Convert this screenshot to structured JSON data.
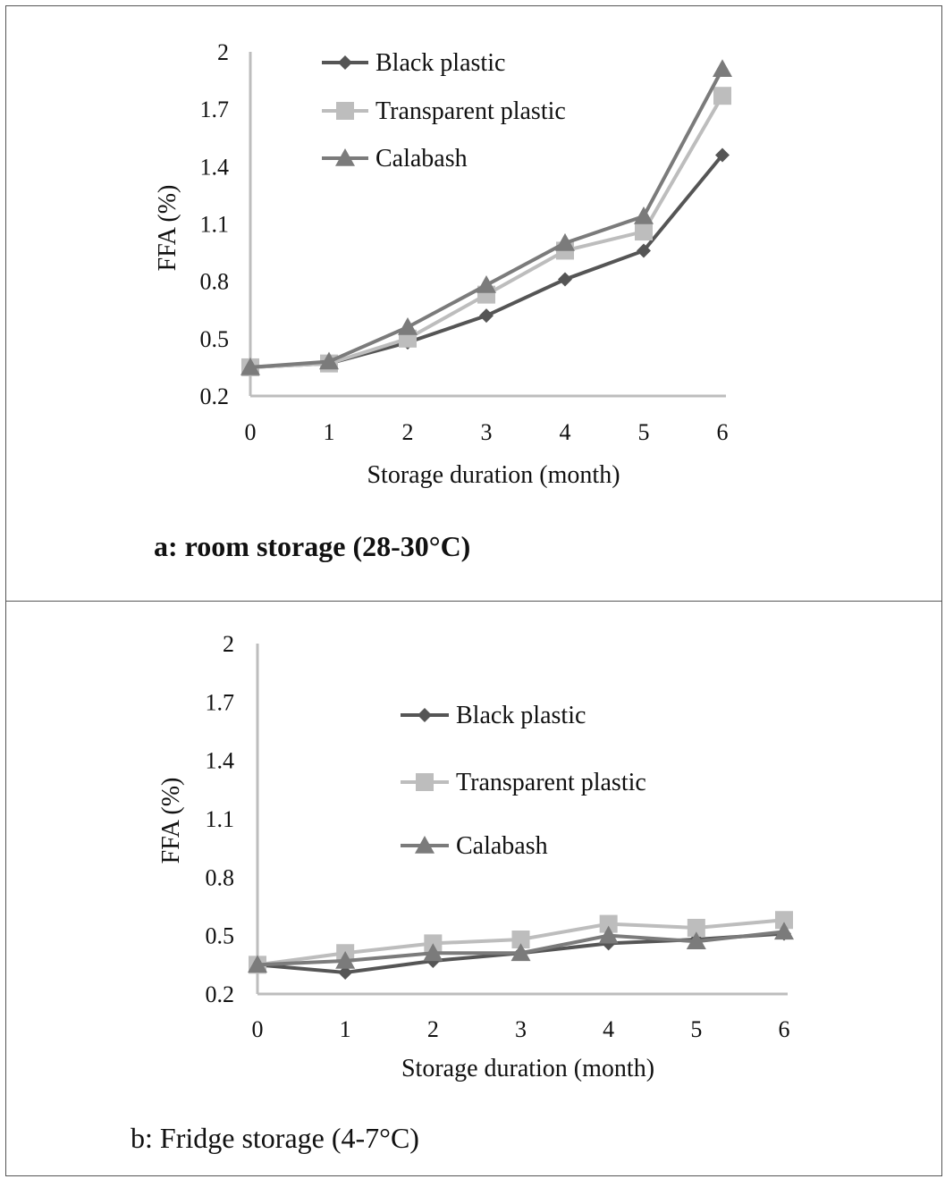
{
  "colors": {
    "black_plastic": "#555555",
    "transparent_plastic": "#bdbdbd",
    "calabash": "#7b7b7b",
    "axis": "#bdbdbd"
  },
  "chart_data": [
    {
      "type": "line",
      "caption": "a: room storage (28-30°C)",
      "xlabel": "Storage duration (month)",
      "ylabel": "FFA (%)",
      "ylim": [
        0.2,
        2.0
      ],
      "y_ticks": [
        "0.2",
        "0.5",
        "0.8",
        "1.1",
        "1.4",
        "1.7",
        "2"
      ],
      "x": [
        "0",
        "1",
        "2",
        "3",
        "4",
        "5",
        "6"
      ],
      "legend": "top-left",
      "series": [
        {
          "name": "Black plastic",
          "marker": "diamond",
          "values": [
            0.35,
            0.37,
            0.48,
            0.62,
            0.81,
            0.96,
            1.46
          ]
        },
        {
          "name": "Transparent plastic",
          "marker": "square",
          "values": [
            0.35,
            0.37,
            0.5,
            0.73,
            0.96,
            1.06,
            1.77
          ]
        },
        {
          "name": "Calabash",
          "marker": "triangle",
          "values": [
            0.35,
            0.38,
            0.56,
            0.78,
            1.0,
            1.14,
            1.91
          ]
        }
      ]
    },
    {
      "type": "line",
      "caption": "b: Fridge storage (4-7°C)",
      "xlabel": "Storage duration (month)",
      "ylabel": "FFA (%)",
      "ylim": [
        0.2,
        2.0
      ],
      "y_ticks": [
        "0.2",
        "0.5",
        "0.8",
        "1.1",
        "1.4",
        "1.7",
        "2"
      ],
      "x": [
        "0",
        "1",
        "2",
        "3",
        "4",
        "5",
        "6"
      ],
      "legend": "center",
      "series": [
        {
          "name": "Black plastic",
          "marker": "diamond",
          "values": [
            0.35,
            0.31,
            0.37,
            0.41,
            0.46,
            0.48,
            0.51
          ]
        },
        {
          "name": "Transparent plastic",
          "marker": "square",
          "values": [
            0.35,
            0.41,
            0.46,
            0.48,
            0.56,
            0.54,
            0.58
          ]
        },
        {
          "name": "Calabash",
          "marker": "triangle",
          "values": [
            0.35,
            0.37,
            0.41,
            0.41,
            0.5,
            0.47,
            0.52
          ]
        }
      ]
    }
  ]
}
